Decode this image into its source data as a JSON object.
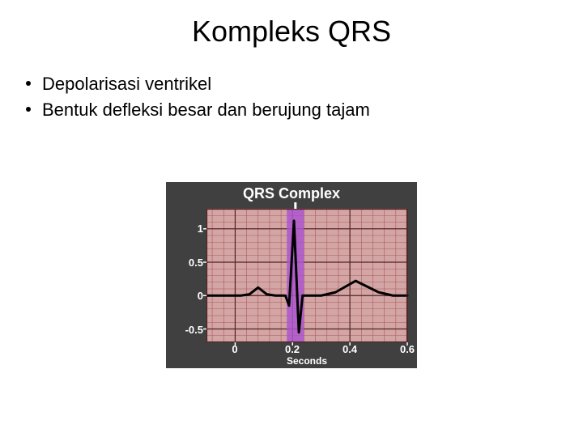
{
  "title": "Kompleks QRS",
  "bullets": [
    "Depolarisasi ventrikel",
    "Bentuk defleksi besar dan berujung tajam"
  ],
  "chart": {
    "type": "line",
    "title": "QRS Complex",
    "x_axis_label": "Seconds",
    "background_color": "#404040",
    "plot_background_color": "#d4a5a5",
    "grid_pink": "#a85a5a",
    "grid_dark": "#552222",
    "highlight_fill": "#aa55cc",
    "trace_color": "#000000",
    "trace_width": 3,
    "label_color": "#ffffff",
    "label_fontsize": 13,
    "title_fontsize": 18,
    "xlim": [
      -0.1,
      0.6
    ],
    "ylim": [
      -0.7,
      1.3
    ],
    "x_ticks": [
      0,
      0.2,
      0.4,
      0.6
    ],
    "y_ticks": [
      -0.5,
      0,
      0.5,
      1.0
    ],
    "highlight_range_x": [
      0.18,
      0.24
    ],
    "ecg_points": [
      [
        -0.1,
        0.0
      ],
      [
        0.02,
        0.0
      ],
      [
        0.05,
        0.02
      ],
      [
        0.08,
        0.12
      ],
      [
        0.11,
        0.02
      ],
      [
        0.14,
        0.0
      ],
      [
        0.175,
        0.0
      ],
      [
        0.188,
        -0.15
      ],
      [
        0.205,
        1.12
      ],
      [
        0.222,
        -0.55
      ],
      [
        0.235,
        0.0
      ],
      [
        0.3,
        0.0
      ],
      [
        0.35,
        0.05
      ],
      [
        0.42,
        0.22
      ],
      [
        0.5,
        0.05
      ],
      [
        0.55,
        0.0
      ],
      [
        0.6,
        0.0
      ]
    ]
  }
}
